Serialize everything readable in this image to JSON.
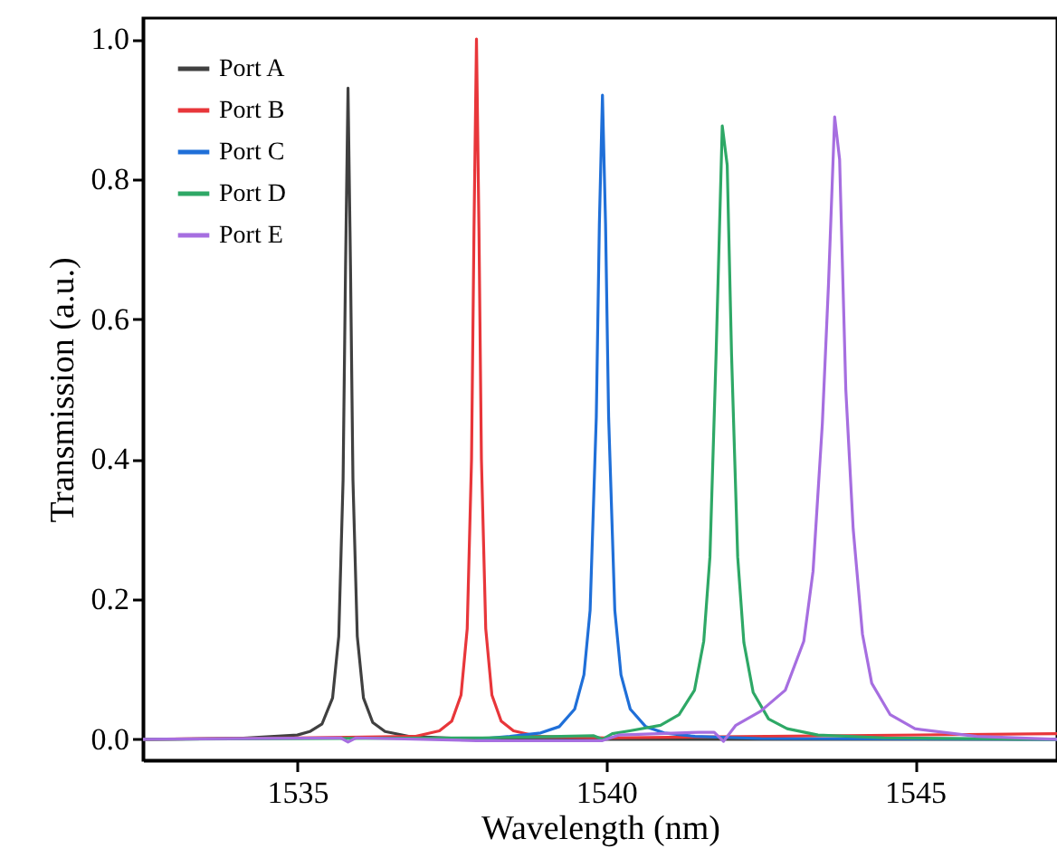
{
  "chart_data": {
    "type": "line",
    "xlabel": "Wavelength (nm)",
    "ylabel": "Transmission (a.u.)",
    "xlim": [
      1532.5,
      1547.3
    ],
    "xticks": [
      1535,
      1540,
      1545
    ],
    "ylim": [
      -0.03,
      1.03
    ],
    "yticks": [
      {
        "value": 0,
        "label": "0.0"
      },
      {
        "value": 0.2,
        "label": "0.2"
      },
      {
        "value": 0.4,
        "label": "0.4"
      },
      {
        "value": 0.6,
        "label": "0.6"
      },
      {
        "value": 0.8,
        "label": "0.8"
      },
      {
        "value": 1,
        "label": "1.0"
      }
    ],
    "grid": false,
    "legend": "top left",
    "marker": "none",
    "line_style": "solid",
    "series": [
      {
        "name": "Port A",
        "color": "#404040",
        "x": [
          1532.5,
          1534,
          1535,
          1535.2,
          1535.4,
          1535.57,
          1535.67,
          1535.74,
          1535.78,
          1535.82,
          1535.86,
          1535.9,
          1535.97,
          1536.07,
          1536.22,
          1536.42,
          1536.82,
          1537.9,
          1547.3
        ],
        "values": [
          0,
          0.001,
          0.006,
          0.011,
          0.022,
          0.059,
          0.147,
          0.37,
          0.675,
          0.93,
          0.675,
          0.37,
          0.147,
          0.059,
          0.024,
          0.011,
          0.004,
          0,
          0
        ]
      },
      {
        "name": "Port B",
        "color": "#e8363a",
        "x": [
          1532.5,
          1535,
          1536.9,
          1537.3,
          1537.5,
          1537.65,
          1537.75,
          1537.82,
          1537.86,
          1537.9,
          1537.94,
          1537.98,
          1538.05,
          1538.15,
          1538.3,
          1538.5,
          1538.9,
          1540,
          1547.3
        ],
        "values": [
          0,
          0.002,
          0.004,
          0.012,
          0.026,
          0.063,
          0.158,
          0.4,
          0.73,
          1.0,
          0.73,
          0.4,
          0.158,
          0.063,
          0.026,
          0.012,
          0.004,
          0.002,
          0.008
        ]
      },
      {
        "name": "Port C",
        "color": "#1f6fd8",
        "x": [
          1537.9,
          1538.44,
          1538.94,
          1539.24,
          1539.49,
          1539.64,
          1539.74,
          1539.84,
          1539.89,
          1539.94,
          1539.99,
          1540.04,
          1540.14,
          1540.24,
          1540.39,
          1540.64,
          1540.94,
          1541.44,
          1542.5,
          1547.3
        ],
        "values": [
          0,
          0.004,
          0.009,
          0.018,
          0.043,
          0.092,
          0.184,
          0.46,
          0.736,
          0.92,
          0.736,
          0.46,
          0.184,
          0.092,
          0.043,
          0.018,
          0.009,
          0.004,
          0.001,
          0
        ]
      },
      {
        "name": "Port D",
        "color": "#2ea866",
        "x": [
          1532.5,
          1538,
          1539.8,
          1539.94,
          1540.1,
          1540.38,
          1540.88,
          1541.18,
          1541.43,
          1541.58,
          1541.68,
          1541.78,
          1541.88,
          1541.96,
          1542.03,
          1542.13,
          1542.23,
          1542.38,
          1542.63,
          1542.93,
          1543.43,
          1544.5,
          1547.3
        ],
        "values": [
          0,
          0.002,
          0.005,
          0,
          0.008,
          0.012,
          0.02,
          0.035,
          0.07,
          0.14,
          0.26,
          0.55,
          0.876,
          0.82,
          0.55,
          0.26,
          0.138,
          0.067,
          0.029,
          0.015,
          0.006,
          0.002,
          0
        ]
      },
      {
        "name": "Port E",
        "color": "#a66ee0",
        "x": [
          1532.5,
          1535.7,
          1535.82,
          1535.95,
          1537.9,
          1539.94,
          1540.2,
          1541.5,
          1541.75,
          1541.9,
          1542.1,
          1542.5,
          1542.9,
          1543.2,
          1543.35,
          1543.5,
          1543.6,
          1543.7,
          1543.78,
          1543.88,
          1544,
          1544.15,
          1544.3,
          1544.6,
          1545,
          1546,
          1547.3
        ],
        "values": [
          0,
          0.002,
          -0.004,
          0.002,
          -0.002,
          -0.002,
          0.006,
          0.01,
          0.01,
          -0.003,
          0.02,
          0.04,
          0.07,
          0.14,
          0.24,
          0.45,
          0.65,
          0.889,
          0.828,
          0.5,
          0.3,
          0.15,
          0.08,
          0.035,
          0.015,
          0.004,
          0
        ]
      }
    ]
  }
}
